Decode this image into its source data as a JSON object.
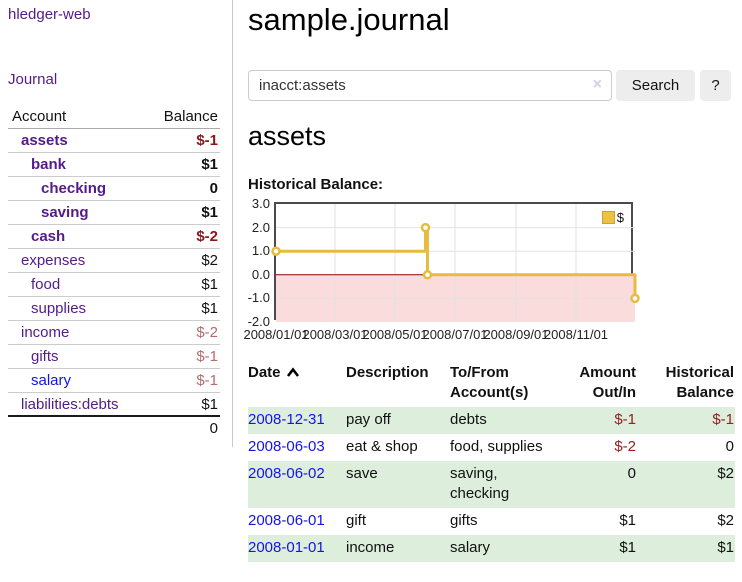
{
  "colors": {
    "link_purple": "#551a8b",
    "link_blue": "#1414e6",
    "negative_bold_red": "#8b1818",
    "negative_light_red": "#b96a6a",
    "register_negative_red": "#942020",
    "row_green": "#ddeedd",
    "button_gray": "#ededed",
    "series_yellow": "#edc240"
  },
  "sidebar": {
    "app_title": "hledger-web",
    "nav_journal": "Journal",
    "header_account": "Account",
    "header_balance": "Balance",
    "accounts": [
      {
        "name": "assets",
        "balance": "$-1"
      },
      {
        "name": "bank",
        "balance": "$1"
      },
      {
        "name": "checking",
        "balance": "0"
      },
      {
        "name": "saving",
        "balance": "$1"
      },
      {
        "name": "cash",
        "balance": "$-2"
      },
      {
        "name": "expenses",
        "balance": "$2"
      },
      {
        "name": "food",
        "balance": "$1"
      },
      {
        "name": "supplies",
        "balance": "$1"
      },
      {
        "name": "income",
        "balance": "$-2"
      },
      {
        "name": "gifts",
        "balance": "$-1"
      },
      {
        "name": "salary",
        "balance": "$-1"
      },
      {
        "name": "liabilities:debts",
        "balance": "$1"
      }
    ],
    "total": "0"
  },
  "main": {
    "title": "sample.journal",
    "search": {
      "value": "inacct:assets",
      "clear_icon": "×",
      "search_button": "Search",
      "help_button": "?"
    },
    "account_title": "assets",
    "chart_heading": "Historical Balance:"
  },
  "chart_data": {
    "type": "line",
    "step": true,
    "title": "Historical Balance:",
    "legend": [
      {
        "label": "$",
        "color": "#edc240"
      }
    ],
    "points": [
      [
        "2008-01-01",
        1
      ],
      [
        "2008-06-01",
        2
      ],
      [
        "2008-06-03",
        0
      ],
      [
        "2008-12-31",
        -1
      ]
    ],
    "xlim": [
      "2008-01-01",
      "2008-12-31"
    ],
    "ylim": [
      -2,
      3
    ],
    "yticks": [
      3.0,
      2.0,
      1.0,
      0.0,
      -1.0,
      -2.0
    ],
    "ytick_labels": [
      "3.0",
      "2.0",
      "1.0",
      "0.0",
      "-1.0",
      "-2.0"
    ],
    "xticks": [
      "2008/01/01",
      "2008/03/01",
      "2008/05/01",
      "2008/07/01",
      "2008/09/01",
      "2008/11/01"
    ],
    "grid": true,
    "legend_position": "top-right",
    "negative_region_shaded": true,
    "colors": {
      "series": "#e7bc3e",
      "marker_fill": "#ffffff",
      "zero_line": "#8b0000",
      "negative_region": "#fbdcdc",
      "grid": "#e2e2e2",
      "border": "#4b4b4b",
      "legend_border": "#c9a232"
    }
  },
  "register": {
    "headers": {
      "date": "Date",
      "description": "Description",
      "accounts": "To/From Account(s)",
      "amount": "Amount Out/In",
      "balance": "Historical Balance"
    },
    "rows": [
      {
        "date": "2008-12-31",
        "description": "pay off",
        "accounts": "debts",
        "amount": "$-1",
        "balance": "$-1"
      },
      {
        "date": "2008-06-03",
        "description": "eat & shop",
        "accounts": "food, supplies",
        "amount": "$-2",
        "balance": "0"
      },
      {
        "date": "2008-06-02",
        "description": "save",
        "accounts": "saving, checking",
        "amount": "0",
        "balance": "$2"
      },
      {
        "date": "2008-06-01",
        "description": "gift",
        "accounts": "gifts",
        "amount": "$1",
        "balance": "$2"
      },
      {
        "date": "2008-01-01",
        "description": "income",
        "accounts": "salary",
        "amount": "$1",
        "balance": "$1"
      }
    ]
  }
}
